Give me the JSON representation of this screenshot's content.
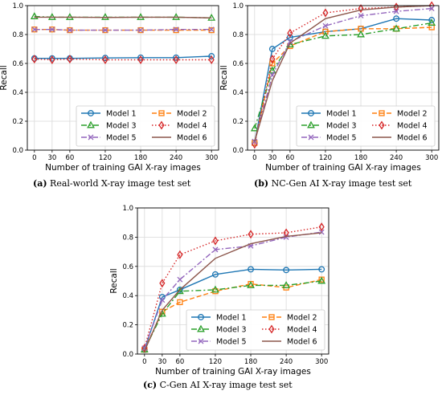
{
  "chart_data": [
    {
      "type": "line",
      "caption_tag": "(a)",
      "caption_text": "Real-world X-ray image test set",
      "xlabel": "Number of training GAI X-ray images",
      "ylabel": "Recall",
      "x": [
        0,
        30,
        60,
        120,
        180,
        240,
        300
      ],
      "xticks": [
        "0",
        "30",
        "60",
        "120",
        "180",
        "240",
        "300"
      ],
      "ylim": [
        0.0,
        1.0
      ],
      "yticks": [
        "0.0",
        "0.2",
        "0.4",
        "0.6",
        "0.8",
        "1.0"
      ],
      "grid": true,
      "legend": "lower-right",
      "series": [
        {
          "name": "Model 1",
          "values": [
            0.635,
            0.635,
            0.635,
            0.638,
            0.64,
            0.64,
            0.65
          ]
        },
        {
          "name": "Model 2",
          "values": [
            0.835,
            0.835,
            0.83,
            0.83,
            0.83,
            0.83,
            0.83
          ]
        },
        {
          "name": "Model 3",
          "values": [
            0.925,
            0.92,
            0.92,
            0.92,
            0.92,
            0.92,
            0.915
          ]
        },
        {
          "name": "Model 4",
          "values": [
            0.63,
            0.625,
            0.63,
            0.625,
            0.625,
            0.625,
            0.625
          ]
        },
        {
          "name": "Model 5",
          "values": [
            0.835,
            0.835,
            0.83,
            0.83,
            0.83,
            0.835,
            0.835
          ]
        },
        {
          "name": "Model 6",
          "values": [
            0.92,
            0.92,
            0.92,
            0.918,
            0.92,
            0.92,
            0.915
          ]
        }
      ]
    },
    {
      "type": "line",
      "caption_tag": "(b)",
      "caption_text": "NC-Gen AI X-ray image test set",
      "xlabel": "Number of training GAI X-ray images",
      "ylabel": "Recall",
      "x": [
        0,
        30,
        60,
        120,
        180,
        240,
        300
      ],
      "xticks": [
        "0",
        "30",
        "60",
        "120",
        "180",
        "240",
        "300"
      ],
      "ylim": [
        0.0,
        1.0
      ],
      "yticks": [
        "0.0",
        "0.2",
        "0.4",
        "0.6",
        "0.8",
        "1.0"
      ],
      "grid": true,
      "legend": "lower-right",
      "series": [
        {
          "name": "Model 1",
          "values": [
            0.05,
            0.7,
            0.78,
            0.82,
            0.84,
            0.91,
            0.9
          ]
        },
        {
          "name": "Model 2",
          "values": [
            0.05,
            0.6,
            0.72,
            0.82,
            0.84,
            0.84,
            0.85
          ]
        },
        {
          "name": "Model 3",
          "values": [
            0.15,
            0.55,
            0.73,
            0.79,
            0.8,
            0.84,
            0.88
          ]
        },
        {
          "name": "Model 4",
          "values": [
            0.04,
            0.63,
            0.81,
            0.95,
            0.98,
            0.99,
            1.0
          ]
        },
        {
          "name": "Model 5",
          "values": [
            0.06,
            0.52,
            0.75,
            0.86,
            0.93,
            0.96,
            0.98
          ]
        },
        {
          "name": "Model 6",
          "values": [
            0.06,
            0.48,
            0.74,
            0.91,
            0.97,
            0.99,
            1.0
          ]
        }
      ]
    },
    {
      "type": "line",
      "caption_tag": "(c)",
      "caption_text": "C-Gen AI X-ray image test set",
      "xlabel": "Number of training GAI X-ray images",
      "ylabel": "Recall",
      "x": [
        0,
        30,
        60,
        120,
        180,
        240,
        300
      ],
      "xticks": [
        "0",
        "30",
        "60",
        "120",
        "180",
        "240",
        "300"
      ],
      "ylim": [
        0.0,
        1.0
      ],
      "yticks": [
        "0.0",
        "0.2",
        "0.4",
        "0.6",
        "0.8",
        "1.0"
      ],
      "grid": true,
      "legend": "lower-right",
      "series": [
        {
          "name": "Model 1",
          "values": [
            0.03,
            0.39,
            0.44,
            0.545,
            0.58,
            0.575,
            0.58
          ]
        },
        {
          "name": "Model 2",
          "values": [
            0.03,
            0.29,
            0.355,
            0.43,
            0.48,
            0.455,
            0.51
          ]
        },
        {
          "name": "Model 3",
          "values": [
            0.03,
            0.275,
            0.43,
            0.44,
            0.47,
            0.47,
            0.5
          ]
        },
        {
          "name": "Model 4",
          "values": [
            0.04,
            0.485,
            0.68,
            0.775,
            0.82,
            0.83,
            0.87
          ]
        },
        {
          "name": "Model 5",
          "values": [
            0.04,
            0.37,
            0.51,
            0.715,
            0.74,
            0.8,
            0.835
          ]
        },
        {
          "name": "Model 6",
          "values": [
            0.02,
            0.3,
            0.44,
            0.655,
            0.755,
            0.805,
            0.83
          ]
        }
      ]
    }
  ],
  "styles": [
    {
      "color": "#1f77b4",
      "dash": "",
      "marker": "circle"
    },
    {
      "color": "#ff7f0e",
      "dash": "6,3",
      "marker": "square"
    },
    {
      "color": "#2ca02c",
      "dash": "7,3,2,3",
      "marker": "triangle"
    },
    {
      "color": "#d62728",
      "dash": "1.5,2.5",
      "marker": "diamond"
    },
    {
      "color": "#9467bd",
      "dash": "7,2.5,2,2.5",
      "marker": "x"
    },
    {
      "color": "#8c564b",
      "dash": "",
      "marker": "none"
    }
  ]
}
